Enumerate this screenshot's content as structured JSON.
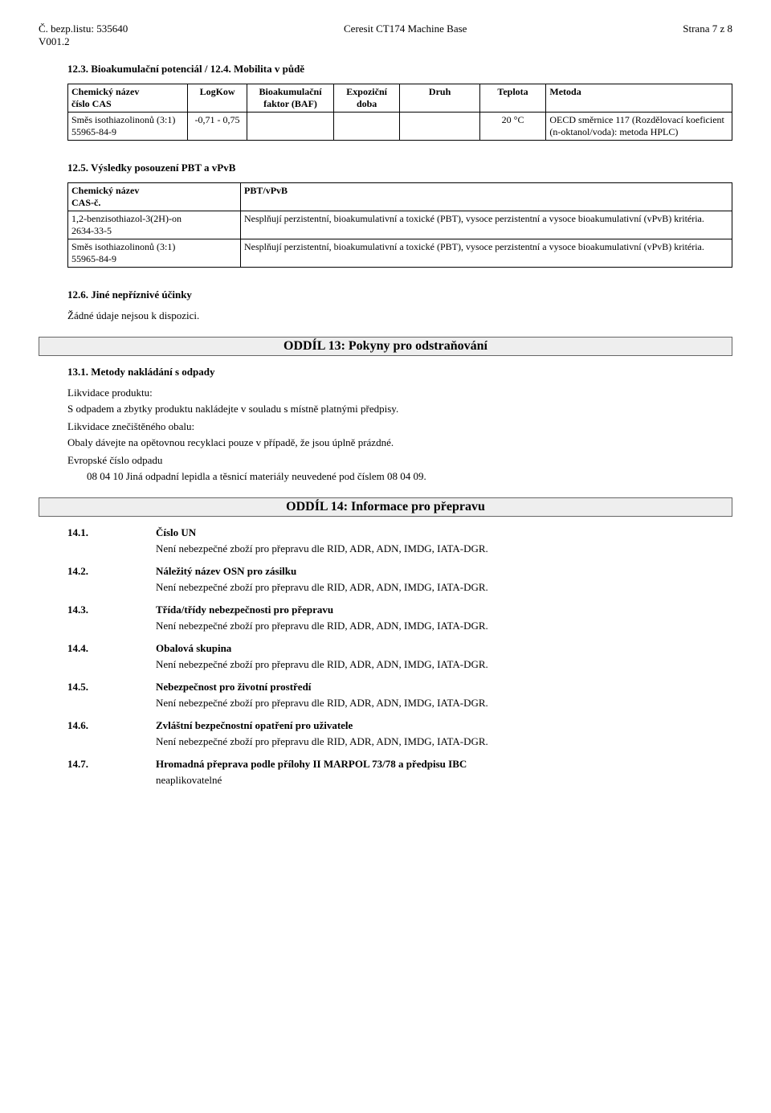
{
  "header": {
    "doc_no_label": "Č. bezp.listu:",
    "doc_no": "535640",
    "version": "V001.2",
    "product": "Ceresit CT174 Machine Base",
    "page": "Strana 7 z 8"
  },
  "sec12_3": {
    "title": "12.3. Bioakumulační potenciál / 12.4. Mobilita v půdě",
    "cols": {
      "name": "Chemický název",
      "cas": "číslo CAS",
      "logkow": "LogKow",
      "baf": "Bioakumulační faktor (BAF)",
      "exp": "Expoziční doba",
      "druh": "Druh",
      "temp": "Teplota",
      "method": "Metoda"
    },
    "row": {
      "name": "Směs isothiazolinonů (3:1)",
      "cas": "55965-84-9",
      "logkow": "-0,71 - 0,75",
      "baf": "",
      "exp": "",
      "druh": "",
      "temp": "20 °C",
      "method": "OECD směrnice 117 (Rozdělovací koeficient (n-oktanol/voda): metoda HPLC)"
    }
  },
  "sec12_5": {
    "title": "12.5. Výsledky posouzení PBT a vPvB",
    "cols": {
      "name": "Chemický název",
      "cas": "CAS-č.",
      "pbt": "PBT/vPvB"
    },
    "rows": [
      {
        "name": "1,2-benzisothiazol-3(2H)-on",
        "cas": "2634-33-5",
        "pbt": "Nesplňují perzistentní, bioakumulativní a toxické (PBT), vysoce perzistentní a vysoce bioakumulativní (vPvB) kritéria."
      },
      {
        "name": "Směs isothiazolinonů (3:1)",
        "cas": "55965-84-9",
        "pbt": "Nesplňují perzistentní, bioakumulativní a toxické (PBT), vysoce perzistentní a vysoce bioakumulativní (vPvB) kritéria."
      }
    ]
  },
  "sec12_6": {
    "title": "12.6. Jiné nepříznivé účinky",
    "text": "Žádné údaje nejsou k dispozici."
  },
  "sec13": {
    "banner": "ODDÍL 13: Pokyny pro odstraňování",
    "sub1": "13.1. Metody nakládání s odpady",
    "p1a": "Likvidace produktu:",
    "p1b": "S odpadem a zbytky produktu nakládejte v souladu s místně platnými předpisy.",
    "p2a": "Likvidace znečištěného obalu:",
    "p2b": "Obaly dávejte na opětovnou recyklaci pouze v případě, že jsou úplně prázdné.",
    "p3a": "Evropské číslo odpadu",
    "p3b": "08 04 10 Jiná odpadní lepidla a těsnicí materiály neuvedené pod číslem 08 04 09."
  },
  "sec14": {
    "banner": "ODDÍL 14: Informace pro přepravu",
    "common": "Není nebezpečné zboží pro přepravu dle RID, ADR, ADN, IMDG, IATA-DGR.",
    "items": [
      {
        "num": "14.1.",
        "lbl": "Číslo UN"
      },
      {
        "num": "14.2.",
        "lbl": "Náležitý název OSN pro zásilku"
      },
      {
        "num": "14.3.",
        "lbl": "Třída/třídy nebezpečnosti pro přepravu"
      },
      {
        "num": "14.4.",
        "lbl": "Obalová skupina"
      },
      {
        "num": "14.5.",
        "lbl": "Nebezpečnost pro životní prostředí"
      },
      {
        "num": "14.6.",
        "lbl": "Zvláštní bezpečnostní opatření pro uživatele"
      }
    ],
    "item7": {
      "num": "14.7.",
      "lbl": "Hromadná přeprava podle přílohy II MARPOL 73/78 a předpisu IBC"
    },
    "na": "neaplikovatelné"
  }
}
